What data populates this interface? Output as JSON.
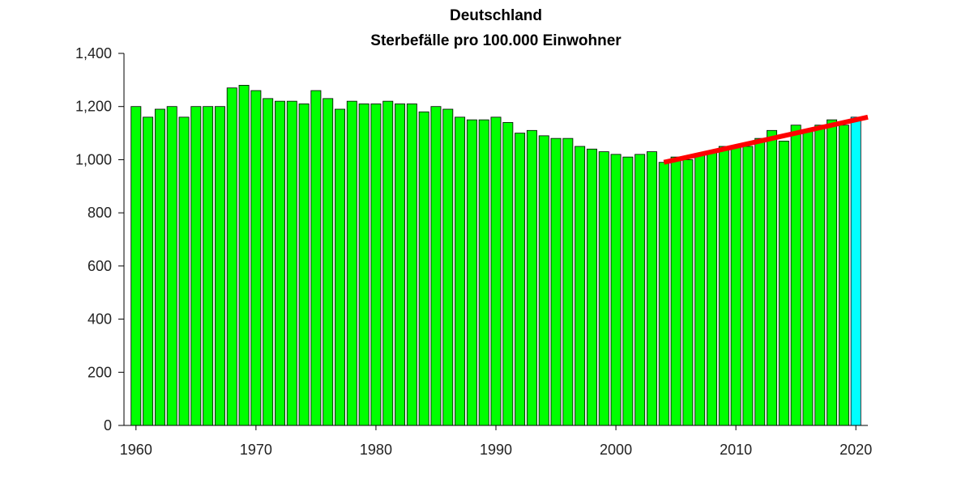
{
  "chart_data": {
    "type": "bar",
    "title": "Deutschland",
    "subtitle": "Sterbefälle pro 100.000 Einwohner",
    "xlabel": "",
    "ylabel": "",
    "ylim": [
      0,
      1400
    ],
    "xlim": [
      1959,
      2021
    ],
    "y_ticks": [
      0,
      200,
      400,
      600,
      800,
      1000,
      1200,
      1400
    ],
    "y_tick_labels": [
      "0",
      "200",
      "400",
      "600",
      "800",
      "1,000",
      "1,200",
      "1,400"
    ],
    "x_ticks": [
      1960,
      1970,
      1980,
      1990,
      2000,
      2010,
      2020
    ],
    "x_tick_labels": [
      "1960",
      "1970",
      "1980",
      "1990",
      "2000",
      "2010",
      "2020"
    ],
    "grid": false,
    "colors": {
      "bar": "#00ff00",
      "highlight_bar": "#00ffff",
      "trend": "#ff0000"
    },
    "categories": [
      1960,
      1961,
      1962,
      1963,
      1964,
      1965,
      1966,
      1967,
      1968,
      1969,
      1970,
      1971,
      1972,
      1973,
      1974,
      1975,
      1976,
      1977,
      1978,
      1979,
      1980,
      1981,
      1982,
      1983,
      1984,
      1985,
      1986,
      1987,
      1988,
      1989,
      1990,
      1991,
      1992,
      1993,
      1994,
      1995,
      1996,
      1997,
      1998,
      1999,
      2000,
      2001,
      2002,
      2003,
      2004,
      2005,
      2006,
      2007,
      2008,
      2009,
      2010,
      2011,
      2012,
      2013,
      2014,
      2015,
      2016,
      2017,
      2018,
      2019,
      2020
    ],
    "values": [
      1200,
      1160,
      1190,
      1200,
      1160,
      1200,
      1200,
      1200,
      1270,
      1280,
      1260,
      1230,
      1220,
      1220,
      1210,
      1260,
      1230,
      1190,
      1220,
      1210,
      1210,
      1220,
      1210,
      1210,
      1180,
      1200,
      1190,
      1160,
      1150,
      1150,
      1160,
      1140,
      1100,
      1110,
      1090,
      1080,
      1080,
      1050,
      1040,
      1030,
      1020,
      1010,
      1020,
      1030,
      990,
      1010,
      1000,
      1020,
      1030,
      1050,
      1050,
      1050,
      1080,
      1110,
      1070,
      1130,
      1110,
      1130,
      1150,
      1130,
      1160
    ],
    "highlight_category": 2020,
    "trend_line": {
      "x": [
        2004,
        2021
      ],
      "y": [
        990,
        1160
      ]
    }
  }
}
